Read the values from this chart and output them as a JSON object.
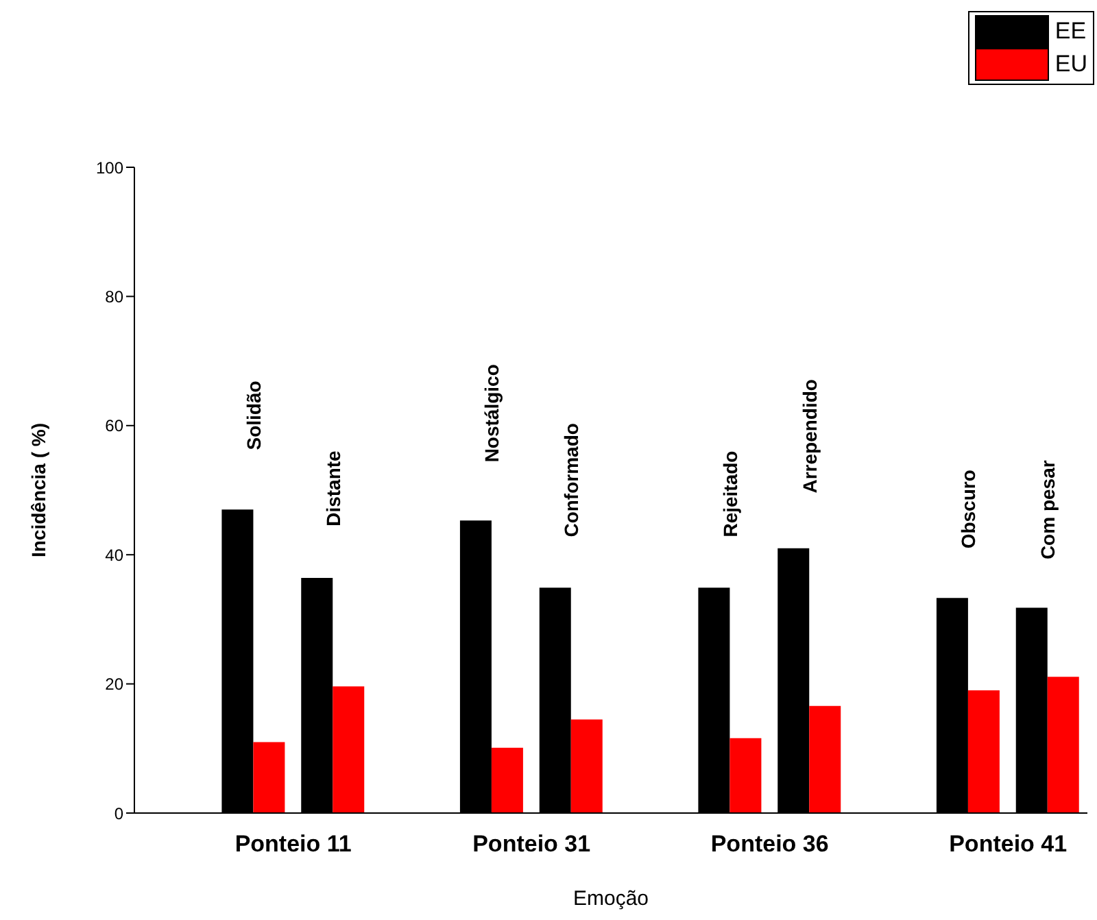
{
  "chart_data": {
    "type": "bar",
    "xlabel": "Emoção",
    "ylabel": "Incidência  ( %)",
    "categories": [
      null,
      "Solidão",
      "Distante",
      null,
      "Nostálgico",
      "Conformado",
      null,
      "Rejeitado",
      "Arrependido",
      null,
      "Obscuro",
      "Com pesar"
    ],
    "series": [
      {
        "name": "EE",
        "color": "#000000",
        "values": [
          null,
          47,
          36.4,
          null,
          45.3,
          34.9,
          null,
          34.9,
          41,
          null,
          33.3,
          31.8
        ]
      },
      {
        "name": "EU",
        "color": "#ff0000",
        "values": [
          null,
          11,
          19.6,
          null,
          10.1,
          14.5,
          null,
          11.6,
          16.6,
          null,
          19,
          21.1
        ]
      }
    ],
    "annotations": [
      "Ponteio 11",
      "Ponteio 31",
      "Ponteio 36",
      "Ponteio 41"
    ],
    "ylim": [
      0,
      100
    ],
    "yticks": [
      0,
      20,
      40,
      60,
      80,
      100
    ],
    "legend": "top right"
  }
}
